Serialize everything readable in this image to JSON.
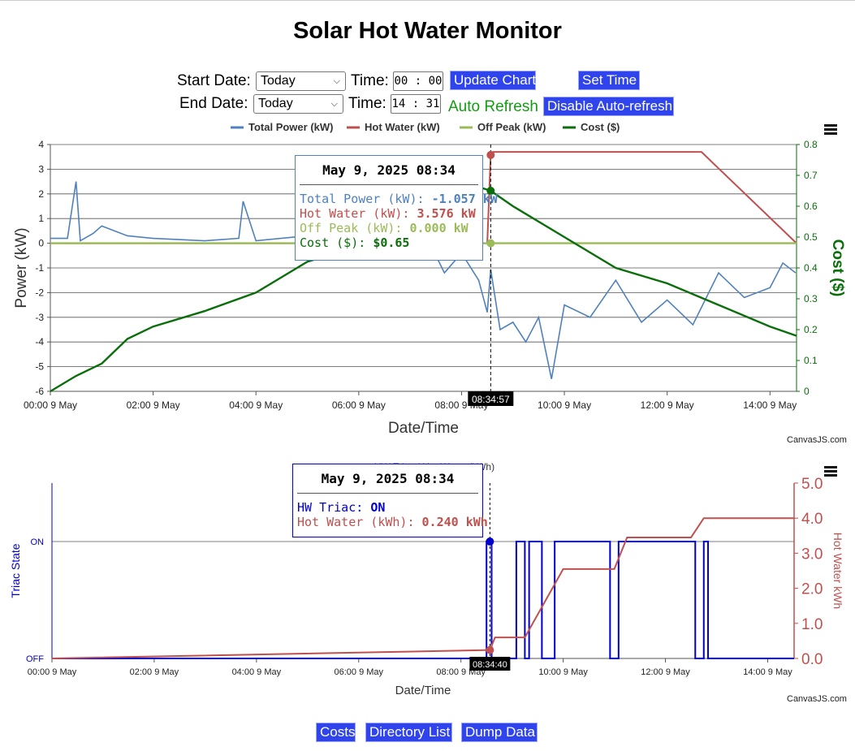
{
  "page": {
    "title": "Solar Hot Water Monitor"
  },
  "controls": {
    "start_label": "Start Date:",
    "start_value": "Today",
    "time_label": "Time:",
    "start_time": "00 : 00",
    "update_button": "Update Chart",
    "set_time_button": "Set Time",
    "end_label": "End Date:",
    "end_value": "Today",
    "end_time": "14 : 31",
    "auto_refresh_text": "Auto Refresh",
    "disable_button": "Disable Auto-refresh"
  },
  "chart1": {
    "legend": [
      "Total Power (kW)",
      "Hot Water (kW)",
      "Off Peak (kW)",
      "Cost ($)"
    ],
    "colors": {
      "total": "#4f81bc",
      "hot": "#c0504e",
      "offpeak": "#9bbb58",
      "cost": "#0a6e0a"
    },
    "y_left_label": "Power (kW)",
    "y_right_label": "Cost ($)",
    "x_label": "Date/Time",
    "y_left_ticks": [
      "4",
      "3",
      "2",
      "1",
      "0",
      "-1",
      "-2",
      "-3",
      "-4",
      "-5",
      "-6"
    ],
    "y_right_ticks": [
      "0.8",
      "0.7",
      "0.6",
      "0.5",
      "0.4",
      "0.3",
      "0.2",
      "0.1",
      "0"
    ],
    "x_ticks": [
      "00:00 9 May",
      "02:00 9 May",
      "04:00 9 May",
      "06:00 9 May",
      "08:00 9 May",
      "10:00 9 May",
      "12:00 9 May",
      "14:00 9 May"
    ],
    "crosshair_label": "08:34:57",
    "credit": "CanvasJS.com",
    "tooltip": {
      "title": "May 9, 2025 08:34",
      "rows": [
        {
          "label": "Total Power (kW):",
          "value": "-1.057 kW"
        },
        {
          "label": "Hot Water (kW):",
          "value": "3.576 kW"
        },
        {
          "label": "Off Peak (kW):",
          "value": "0.000 kW"
        },
        {
          "label": "Cost ($):",
          "value": "$0.65"
        }
      ]
    }
  },
  "chart2": {
    "title_partial": "HW Triac / Hot Water (kWh)",
    "y_left_label": "Triac State",
    "y_right_label": "Hot Water kWh",
    "x_label": "Date/Time",
    "y_left_ticks": [
      "ON",
      "OFF"
    ],
    "y_right_ticks": [
      "5.0",
      "4.0",
      "3.0",
      "2.0",
      "1.0",
      "0.0"
    ],
    "x_ticks": [
      "00:00 9 May",
      "02:00 9 May",
      "04:00 9 May",
      "06:00 9 May",
      "08:00 9 May",
      "10:00 9 May",
      "12:00 9 May",
      "14:00 9 May"
    ],
    "crosshair_label": "08:34:40",
    "credit": "CanvasJS.com",
    "colors": {
      "triac": "#0000cc",
      "hw": "#c0504e"
    },
    "tooltip": {
      "title": "May 9, 2025 08:34",
      "rows": [
        {
          "label": "HW Triac:",
          "value": "ON"
        },
        {
          "label": "Hot Water (kWh):",
          "value": "0.240 kWh"
        }
      ]
    }
  },
  "footer": {
    "buttons": [
      "Costs",
      "Directory List",
      "Dump Data"
    ]
  },
  "chart_data": [
    {
      "type": "line",
      "title": "",
      "xlabel": "Date/Time",
      "ylabel": "Power (kW)",
      "y2label": "Cost ($)",
      "xlim": [
        "00:00",
        "14:31"
      ],
      "ylim": [
        -6,
        4
      ],
      "y2lim": [
        0,
        0.8
      ],
      "series": [
        {
          "name": "Total Power (kW)",
          "axis": "left",
          "x": [
            "00:00",
            "00:20",
            "00:30",
            "00:35",
            "00:50",
            "01:00",
            "01:30",
            "02:00",
            "03:00",
            "03:40",
            "03:45",
            "04:00",
            "05:00",
            "06:00",
            "07:00",
            "07:30",
            "07:40",
            "08:00",
            "08:20",
            "08:30",
            "08:34",
            "08:45",
            "09:00",
            "09:15",
            "09:30",
            "09:45",
            "10:00",
            "10:30",
            "11:00",
            "11:30",
            "12:00",
            "12:30",
            "13:00",
            "13:30",
            "14:00",
            "14:15",
            "14:30"
          ],
          "y": [
            0.2,
            0.2,
            2.5,
            0.1,
            0.4,
            0.7,
            0.3,
            0.2,
            0.1,
            0.2,
            1.7,
            0.1,
            0.3,
            0.5,
            0.4,
            -0.5,
            -1.2,
            -0.4,
            -1.5,
            -2.8,
            -1.057,
            -3.5,
            -3.2,
            -4.0,
            -3.0,
            -5.5,
            -2.5,
            -3.0,
            -1.5,
            -3.2,
            -2.3,
            -3.3,
            -1.2,
            -2.2,
            -1.8,
            -0.8,
            -1.2
          ]
        },
        {
          "name": "Hot Water (kW)",
          "axis": "left",
          "x": [
            "00:00",
            "08:30",
            "08:34",
            "08:37",
            "09:00",
            "09:30",
            "09:45",
            "10:00",
            "11:00",
            "11:15",
            "12:30",
            "12:40",
            "14:31"
          ],
          "y": [
            0,
            0,
            3.576,
            3.7,
            3.7,
            3.7,
            3.7,
            3.7,
            3.7,
            3.7,
            3.7,
            3.7,
            0
          ]
        },
        {
          "name": "Off Peak (kW)",
          "axis": "left",
          "x": [
            "00:00",
            "14:31"
          ],
          "y": [
            0,
            0
          ]
        },
        {
          "name": "Cost ($)",
          "axis": "right",
          "x": [
            "00:00",
            "00:30",
            "01:00",
            "01:30",
            "02:00",
            "03:00",
            "04:00",
            "04:30",
            "05:00",
            "06:00",
            "07:00",
            "08:00",
            "08:34",
            "09:00",
            "10:00",
            "11:00",
            "12:00",
            "13:00",
            "14:00",
            "14:31"
          ],
          "y": [
            0.0,
            0.05,
            0.09,
            0.17,
            0.21,
            0.26,
            0.32,
            0.37,
            0.42,
            0.47,
            0.55,
            0.68,
            0.65,
            0.6,
            0.5,
            0.4,
            0.35,
            0.28,
            0.21,
            0.18
          ]
        }
      ]
    },
    {
      "type": "line",
      "title": "",
      "xlabel": "Date/Time",
      "ylabel": "Triac State",
      "y2label": "Hot Water kWh",
      "xlim": [
        "00:00",
        "14:31"
      ],
      "y2lim": [
        0,
        5
      ],
      "series": [
        {
          "name": "HW Triac",
          "axis": "left",
          "x": [
            "08:30",
            "08:36",
            "09:05",
            "09:15",
            "09:20",
            "09:35",
            "09:50",
            "10:55",
            "11:05",
            "12:35",
            "12:45"
          ],
          "y": [
            "ON",
            "OFF",
            "ON",
            "OFF",
            "ON",
            "OFF",
            "ON",
            "OFF",
            "ON",
            "OFF",
            "ON"
          ]
        },
        {
          "name": "Hot Water (kWh)",
          "axis": "right",
          "x": [
            "00:00",
            "08:34",
            "08:40",
            "09:15",
            "10:00",
            "11:00",
            "11:15",
            "12:30",
            "12:45",
            "14:31"
          ],
          "y": [
            0.0,
            0.24,
            0.6,
            0.6,
            2.55,
            2.55,
            3.45,
            3.45,
            4.0,
            4.0
          ]
        }
      ]
    }
  ]
}
